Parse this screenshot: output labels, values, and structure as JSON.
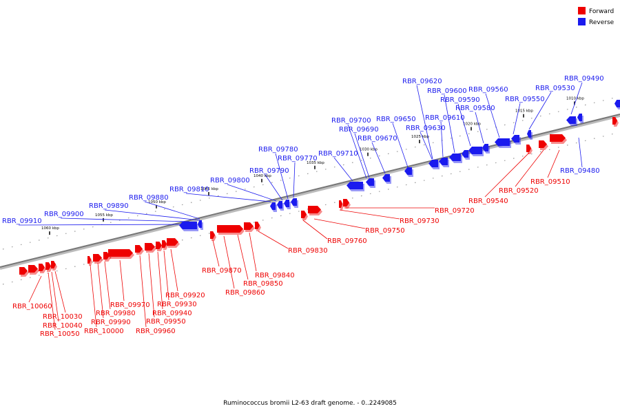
{
  "caption": "Ruminococcus bromii L2-63 draft genome. - 0..2249085",
  "colors": {
    "forward": "#ee0000",
    "reverse": "#1a1aee",
    "axis": "#777777"
  },
  "legend": [
    {
      "label": "Forward",
      "color": "#ee0000"
    },
    {
      "label": "Reverse",
      "color": "#1a1aee"
    }
  ],
  "ticks": [
    "1010 kbp",
    "1015 kbp",
    "1020 kbp",
    "1025 kbp",
    "1030 kbp",
    "1035 kbp",
    "1040 kbp",
    "1045 kbp",
    "1050 kbp",
    "1055 kbp",
    "1060 kbp"
  ],
  "reverse_genes": [
    "RBR_09490",
    "RBR_09530",
    "RBR_09550",
    "RBR_09560",
    "RBR_09580",
    "RBR_09590",
    "RBR_09600",
    "RBR_09610",
    "RBR_09620",
    "RBR_09630",
    "RBR_09650",
    "RBR_09670",
    "RBR_09690",
    "RBR_09700",
    "RBR_09710",
    "RBR_09770",
    "RBR_09780",
    "RBR_09790",
    "RBR_09800",
    "RBR_09810",
    "RBR_09880",
    "RBR_09890",
    "RBR_09900",
    "RBR_09910",
    "RBR_09480"
  ],
  "forward_genes": [
    "RBR_09510",
    "RBR_09520",
    "RBR_09540",
    "RBR_09720",
    "RBR_09730",
    "RBR_09750",
    "RBR_09760",
    "RBR_09830",
    "RBR_09840",
    "RBR_09850",
    "RBR_09860",
    "RBR_09870",
    "RBR_09920",
    "RBR_09930",
    "RBR_09940",
    "RBR_09950",
    "RBR_09960",
    "RBR_09970",
    "RBR_09980",
    "RBR_09990",
    "RBR_10000",
    "RBR_10030",
    "RBR_10040",
    "RBR_10050",
    "RBR_10060"
  ]
}
